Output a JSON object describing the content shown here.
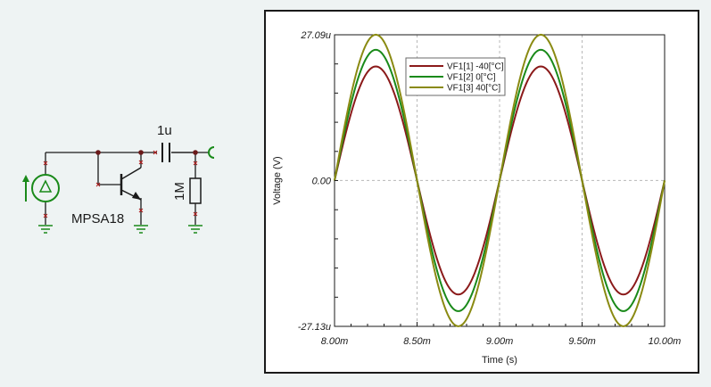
{
  "schematic": {
    "capacitor_label": "1u",
    "resistor_label": "1M",
    "transistor_label": "MPSA18",
    "colors": {
      "wire": "#1a1a1a",
      "ground": "#1a8a1a",
      "node": "#6b1a1a",
      "pin": "#b01a1a"
    }
  },
  "chart_data": {
    "type": "line",
    "xlabel": "Time (s)",
    "ylabel": "Voltage (V)",
    "xlim": [
      0.008,
      0.01
    ],
    "ylim": [
      -2.713e-05,
      2.709e-05
    ],
    "x_ticks": [
      0.008,
      0.0085,
      0.009,
      0.0095,
      0.01
    ],
    "x_tick_labels": [
      "8.00m",
      "8.50m",
      "9.00m",
      "9.50m",
      "10.00m"
    ],
    "y_ticks": [
      -2.713e-05,
      0,
      2.709e-05
    ],
    "y_tick_labels": [
      "-27.13u",
      "0.00",
      "27.09u"
    ],
    "grid": true,
    "legend_position": "top-center",
    "series": [
      {
        "name": "VF1[1]  -40[°C]",
        "color": "#8b1a1a",
        "amplitude": 2.12e-05,
        "frequency": 1000
      },
      {
        "name": "VF1[2]  0[°C]",
        "color": "#1a8a1a",
        "amplitude": 2.43e-05,
        "frequency": 1000
      },
      {
        "name": "VF1[3]  40[°C]",
        "color": "#8a8a12",
        "amplitude": 2.71e-05,
        "frequency": 1000
      }
    ]
  }
}
